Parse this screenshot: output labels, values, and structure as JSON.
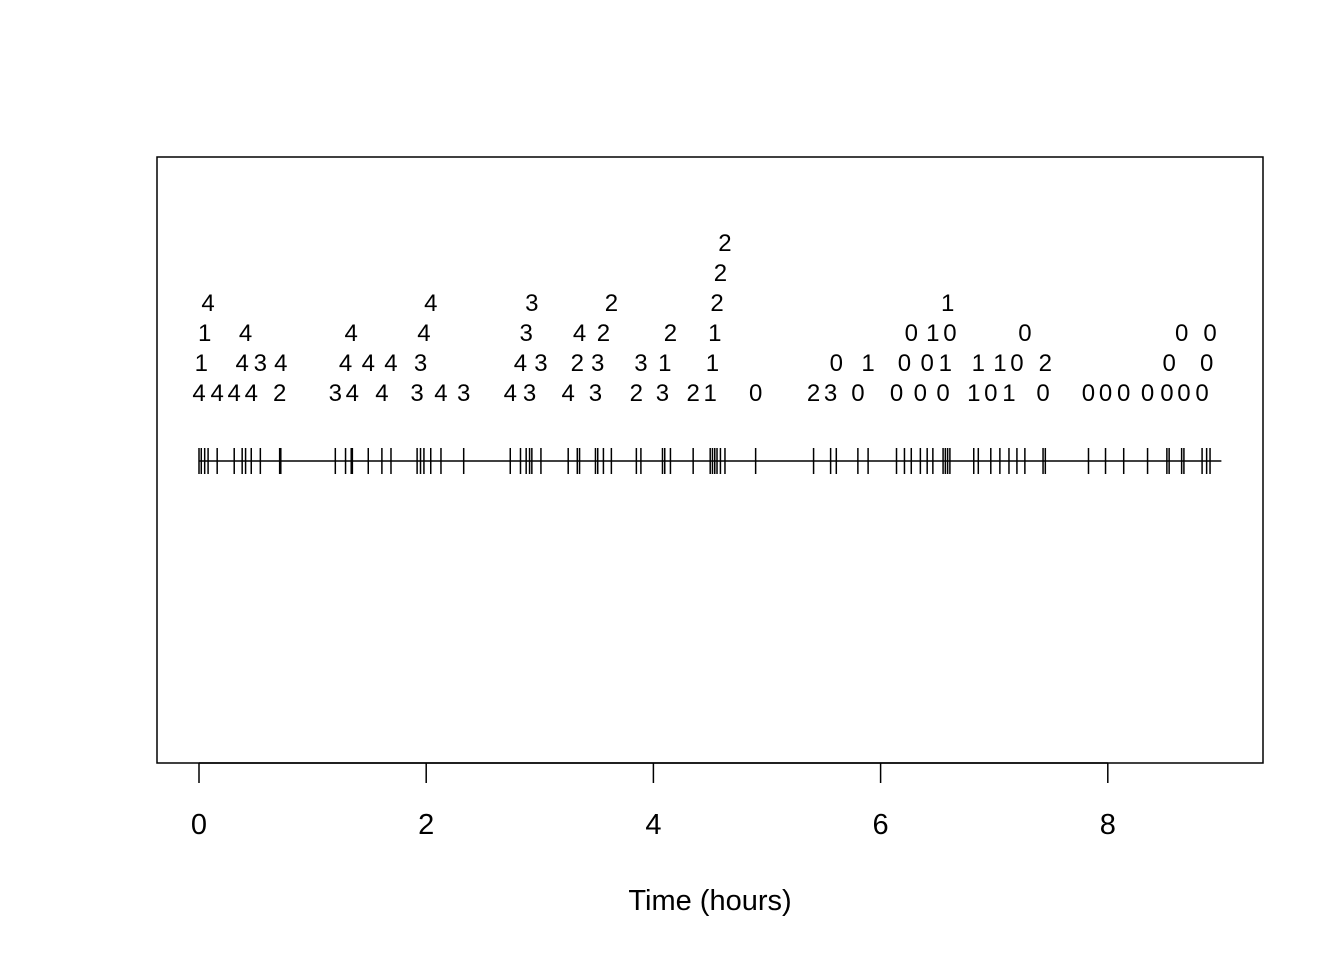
{
  "chart_data": {
    "type": "scatter",
    "title": "",
    "xlabel": "Time (hours)",
    "ylabel": "",
    "xlim": [
      0,
      9
    ],
    "x_ticks": [
      0,
      2,
      4,
      6,
      8
    ],
    "tick_labels": [
      "0",
      "2",
      "4",
      "6",
      "8"
    ],
    "line_range": [
      0,
      9
    ],
    "grid": false,
    "points": [
      {
        "t": 0.0,
        "label": "4"
      },
      {
        "t": 0.02,
        "label": "1"
      },
      {
        "t": 0.05,
        "label": "1"
      },
      {
        "t": 0.08,
        "label": "4"
      },
      {
        "t": 0.16,
        "label": "4"
      },
      {
        "t": 0.31,
        "label": "4"
      },
      {
        "t": 0.38,
        "label": "4"
      },
      {
        "t": 0.41,
        "label": "4"
      },
      {
        "t": 0.46,
        "label": "4"
      },
      {
        "t": 0.54,
        "label": "3"
      },
      {
        "t": 0.71,
        "label": "2"
      },
      {
        "t": 0.72,
        "label": "4"
      },
      {
        "t": 1.2,
        "label": "3"
      },
      {
        "t": 1.29,
        "label": "4"
      },
      {
        "t": 1.34,
        "label": "4"
      },
      {
        "t": 1.35,
        "label": "4"
      },
      {
        "t": 1.49,
        "label": "4"
      },
      {
        "t": 1.61,
        "label": "4"
      },
      {
        "t": 1.69,
        "label": "4"
      },
      {
        "t": 1.92,
        "label": "3"
      },
      {
        "t": 1.95,
        "label": "3"
      },
      {
        "t": 1.98,
        "label": "4"
      },
      {
        "t": 2.04,
        "label": "4"
      },
      {
        "t": 2.13,
        "label": "4"
      },
      {
        "t": 2.33,
        "label": "3"
      },
      {
        "t": 2.74,
        "label": "4"
      },
      {
        "t": 2.83,
        "label": "4"
      },
      {
        "t": 2.88,
        "label": "3"
      },
      {
        "t": 2.91,
        "label": "3"
      },
      {
        "t": 2.93,
        "label": "3"
      },
      {
        "t": 3.01,
        "label": "3"
      },
      {
        "t": 3.25,
        "label": "4"
      },
      {
        "t": 3.33,
        "label": "2"
      },
      {
        "t": 3.35,
        "label": "4"
      },
      {
        "t": 3.49,
        "label": "3"
      },
      {
        "t": 3.51,
        "label": "3"
      },
      {
        "t": 3.56,
        "label": "2"
      },
      {
        "t": 3.63,
        "label": "2"
      },
      {
        "t": 3.85,
        "label": "2"
      },
      {
        "t": 3.89,
        "label": "3"
      },
      {
        "t": 4.08,
        "label": "3"
      },
      {
        "t": 4.1,
        "label": "1"
      },
      {
        "t": 4.15,
        "label": "2"
      },
      {
        "t": 4.35,
        "label": "2"
      },
      {
        "t": 4.5,
        "label": "1"
      },
      {
        "t": 4.52,
        "label": "1"
      },
      {
        "t": 4.54,
        "label": "1"
      },
      {
        "t": 4.56,
        "label": "2"
      },
      {
        "t": 4.59,
        "label": "2"
      },
      {
        "t": 4.63,
        "label": "2"
      },
      {
        "t": 4.9,
        "label": "0"
      },
      {
        "t": 5.41,
        "label": "2"
      },
      {
        "t": 5.56,
        "label": "3"
      },
      {
        "t": 5.61,
        "label": "0"
      },
      {
        "t": 5.8,
        "label": "0"
      },
      {
        "t": 5.89,
        "label": "1"
      },
      {
        "t": 6.14,
        "label": "0"
      },
      {
        "t": 6.21,
        "label": "0"
      },
      {
        "t": 6.27,
        "label": "0"
      },
      {
        "t": 6.35,
        "label": "0"
      },
      {
        "t": 6.41,
        "label": "0"
      },
      {
        "t": 6.46,
        "label": "1"
      },
      {
        "t": 6.55,
        "label": "0"
      },
      {
        "t": 6.57,
        "label": "1"
      },
      {
        "t": 6.59,
        "label": "1"
      },
      {
        "t": 6.61,
        "label": "0"
      },
      {
        "t": 6.82,
        "label": "1"
      },
      {
        "t": 6.86,
        "label": "1"
      },
      {
        "t": 6.97,
        "label": "0"
      },
      {
        "t": 7.05,
        "label": "1"
      },
      {
        "t": 7.13,
        "label": "1"
      },
      {
        "t": 7.2,
        "label": "0"
      },
      {
        "t": 7.27,
        "label": "0"
      },
      {
        "t": 7.43,
        "label": "0"
      },
      {
        "t": 7.45,
        "label": "2"
      },
      {
        "t": 7.83,
        "label": "0"
      },
      {
        "t": 7.98,
        "label": "0"
      },
      {
        "t": 8.14,
        "label": "0"
      },
      {
        "t": 8.35,
        "label": "0"
      },
      {
        "t": 8.52,
        "label": "0"
      },
      {
        "t": 8.54,
        "label": "0"
      },
      {
        "t": 8.65,
        "label": "0"
      },
      {
        "t": 8.67,
        "label": "0"
      },
      {
        "t": 8.83,
        "label": "0"
      },
      {
        "t": 8.87,
        "label": "0"
      },
      {
        "t": 8.9,
        "label": "0"
      }
    ]
  }
}
